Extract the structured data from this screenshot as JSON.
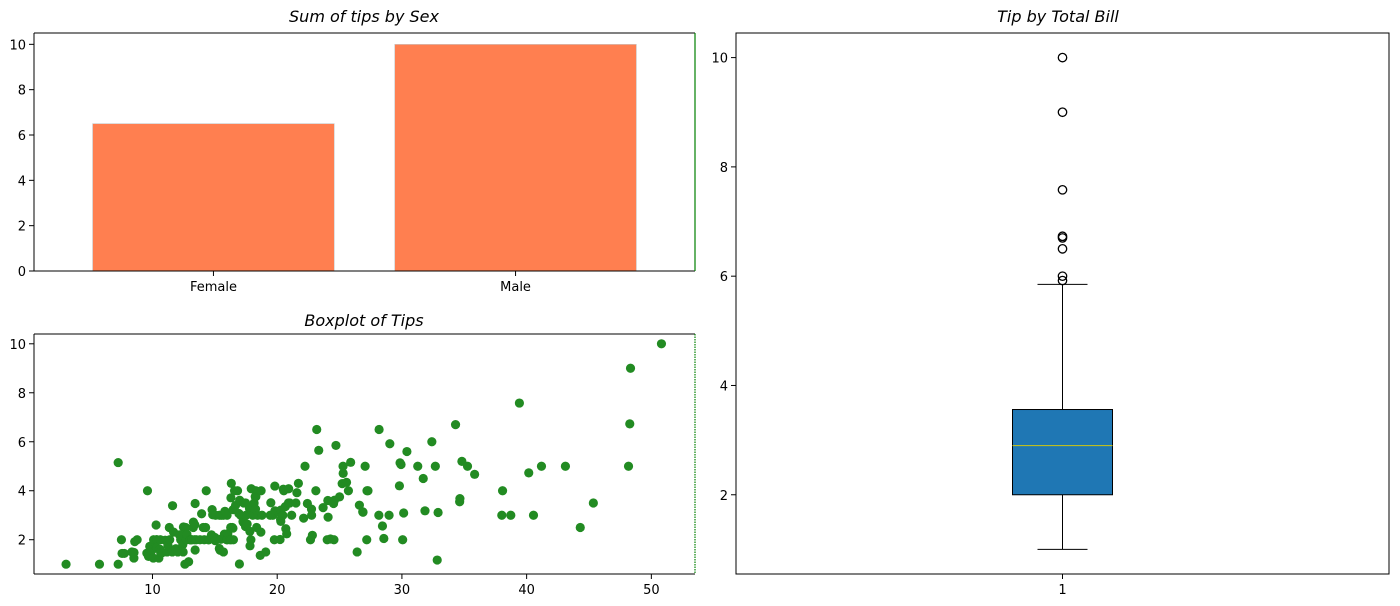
{
  "chart_data": [
    {
      "id": "bar",
      "type": "bar",
      "title": "Sum of tips by Sex",
      "xlabel": "",
      "ylabel": "",
      "categories": [
        "Female",
        "Male"
      ],
      "values": [
        6.5,
        10.0
      ],
      "ylim": [
        0,
        10.5
      ],
      "yticks": [
        0,
        2,
        4,
        6,
        8,
        10
      ],
      "color": "#ff7f50",
      "grid": false
    },
    {
      "id": "scatter",
      "type": "scatter",
      "title": "Boxplot of Tips",
      "xlabel": "",
      "ylabel": "",
      "xlim": [
        0.5,
        53.5
      ],
      "ylim": [
        0.6,
        10.4
      ],
      "xticks": [
        10,
        20,
        30,
        40,
        50
      ],
      "yticks": [
        2,
        4,
        6,
        8,
        10
      ],
      "color": "#228b22",
      "grid": false,
      "points": [
        [
          3.07,
          1.0
        ],
        [
          5.75,
          1.0
        ],
        [
          7.25,
          1.0
        ],
        [
          7.25,
          5.15
        ],
        [
          7.51,
          2.0
        ],
        [
          7.56,
          1.44
        ],
        [
          7.74,
          1.44
        ],
        [
          8.35,
          1.5
        ],
        [
          8.51,
          1.25
        ],
        [
          8.52,
          1.48
        ],
        [
          8.58,
          1.92
        ],
        [
          8.77,
          2.0
        ],
        [
          9.55,
          1.45
        ],
        [
          9.6,
          4.0
        ],
        [
          9.68,
          1.32
        ],
        [
          9.78,
          1.73
        ],
        [
          9.94,
          1.56
        ],
        [
          10.07,
          1.25
        ],
        [
          10.07,
          1.83
        ],
        [
          10.09,
          2.0
        ],
        [
          10.27,
          1.71
        ],
        [
          10.29,
          2.6
        ],
        [
          10.33,
          1.67
        ],
        [
          10.33,
          2.0
        ],
        [
          10.34,
          1.66
        ],
        [
          10.34,
          2.0
        ],
        [
          10.51,
          1.25
        ],
        [
          10.59,
          1.61
        ],
        [
          10.63,
          2.0
        ],
        [
          10.65,
          1.5
        ],
        [
          10.77,
          1.47
        ],
        [
          11.02,
          1.98
        ],
        [
          11.17,
          1.5
        ],
        [
          11.24,
          1.76
        ],
        [
          11.35,
          2.5
        ],
        [
          11.38,
          2.0
        ],
        [
          11.59,
          1.5
        ],
        [
          11.61,
          3.39
        ],
        [
          11.69,
          2.31
        ],
        [
          11.87,
          1.63
        ],
        [
          12.03,
          1.5
        ],
        [
          12.16,
          2.2
        ],
        [
          12.26,
          2.0
        ],
        [
          12.43,
          1.8
        ],
        [
          12.46,
          1.5
        ],
        [
          12.48,
          2.52
        ],
        [
          12.54,
          2.5
        ],
        [
          12.6,
          1.0
        ],
        [
          12.66,
          2.5
        ],
        [
          12.69,
          2.0
        ],
        [
          12.74,
          2.01
        ],
        [
          12.76,
          2.23
        ],
        [
          12.9,
          1.1
        ],
        [
          13.0,
          2.0
        ],
        [
          13.03,
          2.0
        ],
        [
          13.13,
          2.0
        ],
        [
          13.16,
          2.0
        ],
        [
          13.27,
          2.5
        ],
        [
          13.28,
          2.72
        ],
        [
          13.37,
          2.0
        ],
        [
          13.39,
          2.61
        ],
        [
          13.42,
          1.58
        ],
        [
          13.42,
          3.48
        ],
        [
          13.51,
          2.0
        ],
        [
          13.81,
          2.0
        ],
        [
          13.94,
          3.06
        ],
        [
          14.07,
          2.5
        ],
        [
          14.15,
          2.0
        ],
        [
          14.26,
          2.5
        ],
        [
          14.31,
          4.0
        ],
        [
          14.48,
          2.0
        ],
        [
          14.52,
          2.0
        ],
        [
          14.73,
          2.2
        ],
        [
          14.78,
          3.23
        ],
        [
          14.83,
          3.02
        ],
        [
          15.01,
          2.09
        ],
        [
          15.04,
          1.96
        ],
        [
          15.06,
          3.0
        ],
        [
          15.36,
          1.64
        ],
        [
          15.38,
          3.0
        ],
        [
          15.42,
          1.57
        ],
        [
          15.48,
          2.02
        ],
        [
          15.53,
          3.0
        ],
        [
          15.69,
          1.5
        ],
        [
          15.69,
          3.0
        ],
        [
          15.77,
          2.23
        ],
        [
          15.81,
          3.16
        ],
        [
          15.95,
          2.0
        ],
        [
          15.98,
          2.03
        ],
        [
          15.98,
          3.0
        ],
        [
          16.0,
          2.0
        ],
        [
          16.04,
          2.24
        ],
        [
          16.21,
          2.0
        ],
        [
          16.27,
          2.5
        ],
        [
          16.29,
          3.71
        ],
        [
          16.31,
          2.0
        ],
        [
          16.32,
          4.3
        ],
        [
          16.4,
          2.5
        ],
        [
          16.45,
          2.47
        ],
        [
          16.47,
          3.23
        ],
        [
          16.49,
          2.0
        ],
        [
          16.58,
          4.0
        ],
        [
          16.66,
          3.4
        ],
        [
          16.82,
          4.0
        ],
        [
          16.93,
          3.07
        ],
        [
          16.97,
          1.01
        ],
        [
          16.99,
          3.61
        ],
        [
          17.07,
          3.0
        ],
        [
          17.26,
          2.74
        ],
        [
          17.29,
          2.71
        ],
        [
          17.31,
          3.5
        ],
        [
          17.46,
          2.54
        ],
        [
          17.47,
          3.5
        ],
        [
          17.51,
          3.0
        ],
        [
          17.59,
          2.64
        ],
        [
          17.78,
          3.27
        ],
        [
          17.81,
          2.34
        ],
        [
          17.82,
          1.75
        ],
        [
          17.89,
          2.0
        ],
        [
          17.92,
          4.08
        ],
        [
          18.04,
          3.0
        ],
        [
          18.15,
          3.5
        ],
        [
          18.24,
          3.76
        ],
        [
          18.26,
          3.25
        ],
        [
          18.28,
          4.0
        ],
        [
          18.29,
          3.76
        ],
        [
          18.35,
          2.5
        ],
        [
          18.43,
          3.0
        ],
        [
          18.64,
          1.36
        ],
        [
          18.69,
          2.31
        ],
        [
          18.71,
          4.0
        ],
        [
          18.78,
          3.0
        ],
        [
          19.08,
          1.5
        ],
        [
          19.44,
          3.0
        ],
        [
          19.49,
          3.51
        ],
        [
          19.65,
          3.0
        ],
        [
          19.77,
          2.0
        ],
        [
          19.81,
          4.19
        ],
        [
          19.82,
          3.18
        ],
        [
          20.08,
          3.15
        ],
        [
          20.23,
          2.01
        ],
        [
          20.27,
          2.83
        ],
        [
          20.29,
          2.75
        ],
        [
          20.29,
          3.21
        ],
        [
          20.45,
          3.0
        ],
        [
          20.49,
          4.06
        ],
        [
          20.53,
          4.0
        ],
        [
          20.65,
          3.35
        ],
        [
          20.69,
          2.45
        ],
        [
          20.76,
          2.24
        ],
        [
          20.9,
          3.5
        ],
        [
          20.92,
          4.08
        ],
        [
          21.01,
          3.5
        ],
        [
          21.16,
          3.0
        ],
        [
          21.5,
          3.5
        ],
        [
          21.58,
          3.92
        ],
        [
          21.7,
          4.3
        ],
        [
          22.12,
          2.88
        ],
        [
          22.23,
          5.0
        ],
        [
          22.42,
          3.48
        ],
        [
          22.67,
          2.0
        ],
        [
          22.75,
          3.25
        ],
        [
          22.76,
          3.0
        ],
        [
          22.82,
          2.18
        ],
        [
          23.1,
          4.0
        ],
        [
          23.17,
          6.5
        ],
        [
          23.33,
          5.65
        ],
        [
          23.68,
          3.31
        ],
        [
          24.01,
          2.0
        ],
        [
          24.06,
          3.6
        ],
        [
          24.08,
          2.92
        ],
        [
          24.27,
          2.03
        ],
        [
          24.52,
          3.48
        ],
        [
          24.55,
          2.0
        ],
        [
          24.59,
          3.61
        ],
        [
          24.71,
          5.85
        ],
        [
          25.0,
          3.75
        ],
        [
          25.21,
          4.29
        ],
        [
          25.28,
          5.0
        ],
        [
          25.29,
          4.71
        ],
        [
          25.56,
          4.34
        ],
        [
          25.71,
          4.0
        ],
        [
          25.89,
          5.16
        ],
        [
          26.41,
          1.5
        ],
        [
          26.59,
          3.41
        ],
        [
          26.86,
          3.14
        ],
        [
          26.88,
          3.12
        ],
        [
          27.05,
          5.0
        ],
        [
          27.18,
          2.0
        ],
        [
          27.2,
          4.0
        ],
        [
          27.28,
          4.0
        ],
        [
          28.15,
          3.0
        ],
        [
          28.17,
          6.5
        ],
        [
          28.44,
          2.56
        ],
        [
          28.55,
          2.05
        ],
        [
          28.97,
          3.0
        ],
        [
          29.03,
          5.92
        ],
        [
          29.8,
          4.2
        ],
        [
          29.85,
          5.14
        ],
        [
          29.93,
          5.07
        ],
        [
          30.06,
          2.0
        ],
        [
          30.14,
          3.09
        ],
        [
          30.4,
          5.6
        ],
        [
          31.27,
          5.0
        ],
        [
          31.71,
          4.5
        ],
        [
          31.85,
          3.18
        ],
        [
          32.4,
          6.0
        ],
        [
          32.68,
          5.0
        ],
        [
          32.83,
          1.17
        ],
        [
          32.9,
          3.11
        ],
        [
          34.3,
          6.7
        ],
        [
          34.63,
          3.55
        ],
        [
          34.65,
          3.68
        ],
        [
          34.81,
          5.2
        ],
        [
          35.26,
          5.0
        ],
        [
          35.83,
          4.67
        ],
        [
          38.01,
          3.0
        ],
        [
          38.07,
          4.0
        ],
        [
          38.73,
          3.0
        ],
        [
          39.42,
          7.58
        ],
        [
          40.17,
          4.73
        ],
        [
          40.55,
          3.0
        ],
        [
          41.19,
          5.0
        ],
        [
          43.11,
          5.0
        ],
        [
          44.3,
          2.5
        ],
        [
          45.35,
          3.5
        ],
        [
          48.17,
          5.0
        ],
        [
          48.27,
          6.73
        ],
        [
          48.33,
          9.0
        ],
        [
          50.81,
          10.0
        ]
      ]
    },
    {
      "id": "box",
      "type": "box",
      "title": "Tip by Total Bill",
      "xlabel": "",
      "ylabel": "",
      "categories": [
        "1"
      ],
      "ylim": [
        0.55,
        10.45
      ],
      "yticks": [
        2,
        4,
        6,
        8,
        10
      ],
      "stats": {
        "whislo": 1.0,
        "q1": 2.0,
        "median": 2.9,
        "q3": 3.56,
        "whishi": 5.85
      },
      "fliers": [
        5.92,
        6.0,
        6.5,
        6.7,
        6.73,
        7.58,
        9.0,
        10.0
      ],
      "box_color": "#1f77b4",
      "median_color": "#bcbd22",
      "grid": false
    }
  ]
}
